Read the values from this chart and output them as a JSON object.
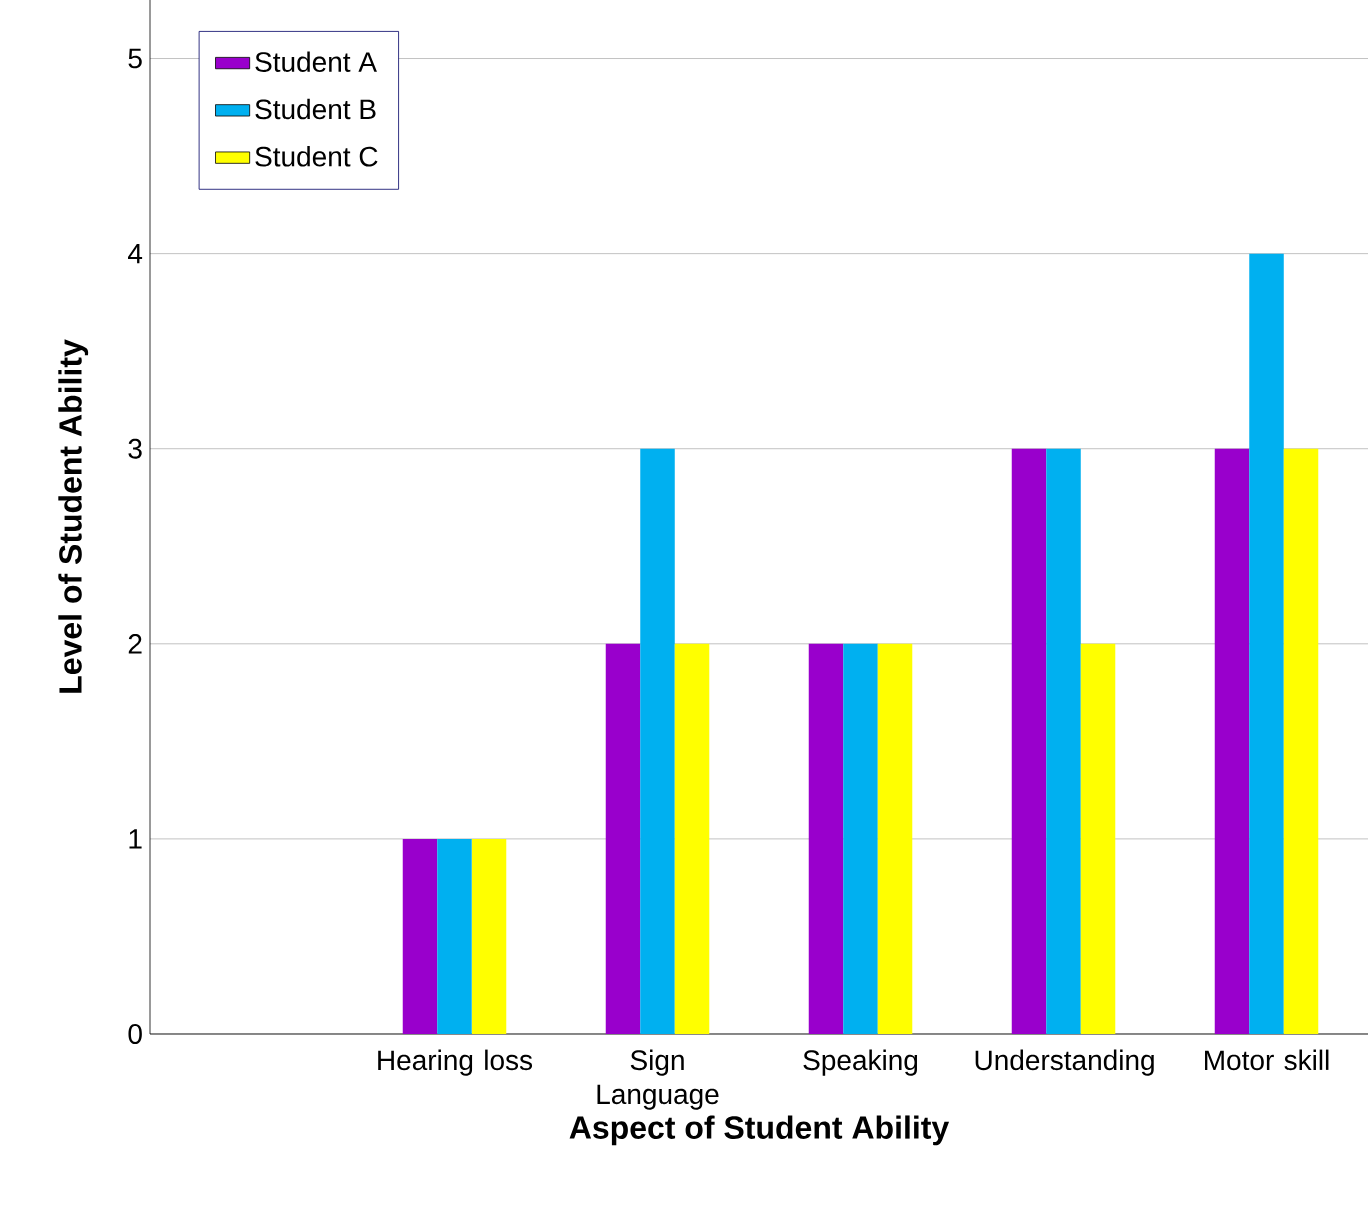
{
  "chart_data": {
    "type": "bar",
    "xlabel": "Aspect of Student Ability",
    "ylabel": "Level of Student Ability",
    "categories": [
      null,
      "Hearing loss",
      "Sign Language",
      "Speaking",
      "Understanding",
      "Motor skill"
    ],
    "series": [
      {
        "name": "Student A",
        "color": "#9900cc",
        "values": [
          null,
          1,
          2,
          2,
          3,
          3
        ]
      },
      {
        "name": "Student B",
        "color": "#00b0f0",
        "values": [
          null,
          1,
          3,
          2,
          3,
          4
        ]
      },
      {
        "name": "Student C",
        "color": "#ffff00",
        "values": [
          null,
          1,
          2,
          2,
          2,
          3
        ]
      }
    ],
    "ylim": [
      0,
      5.3
    ],
    "yticks": [
      0,
      1,
      2,
      3,
      4,
      5
    ],
    "grid": "y",
    "legend": "top left"
  }
}
